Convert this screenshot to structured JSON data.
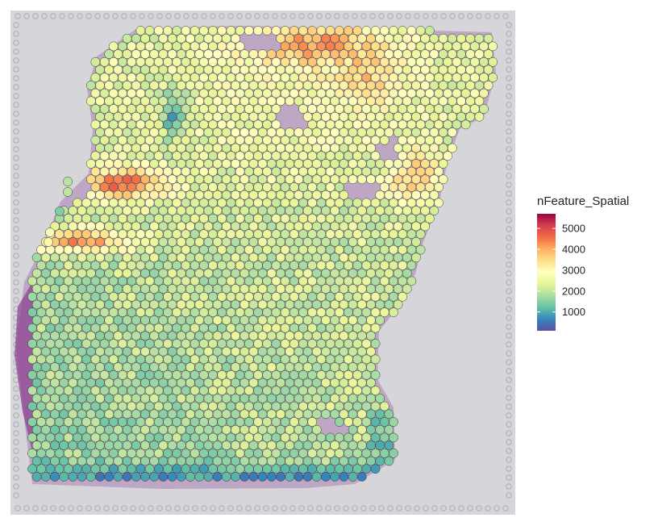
{
  "chart_data": {
    "type": "heatmap",
    "subtype": "spatial-spot-plot",
    "legend": {
      "title": "nFeature_Spatial",
      "placement": "right",
      "breaks": [
        1000,
        2000,
        3000,
        4000,
        5000
      ],
      "tick_labels": [
        "1000",
        "2000",
        "3000",
        "4000",
        "5000"
      ],
      "range": [
        100,
        5700
      ],
      "palette": [
        "#5e4fa2",
        "#3288bd",
        "#66c2a5",
        "#abdda4",
        "#e6f598",
        "#ffffbf",
        "#fee08b",
        "#fdae61",
        "#f46d43",
        "#d53e4f",
        "#9e0142"
      ]
    },
    "regional_values": [
      {
        "region": "top-center-strip",
        "value": 4200
      },
      {
        "region": "upper-left-curve",
        "value": 4700
      },
      {
        "region": "upper-right-patch",
        "value": 3700
      },
      {
        "region": "center-body",
        "value": 2100
      },
      {
        "region": "lower-left-body",
        "value": 1500
      },
      {
        "region": "bottom-edge",
        "value": 700
      }
    ],
    "grid": false,
    "background_image": "tissue-histology-he"
  },
  "colors": {
    "tissue_purple": "#9b5a9e",
    "slide_gray": "#d3d2d8",
    "spot_stroke": "#333333"
  }
}
